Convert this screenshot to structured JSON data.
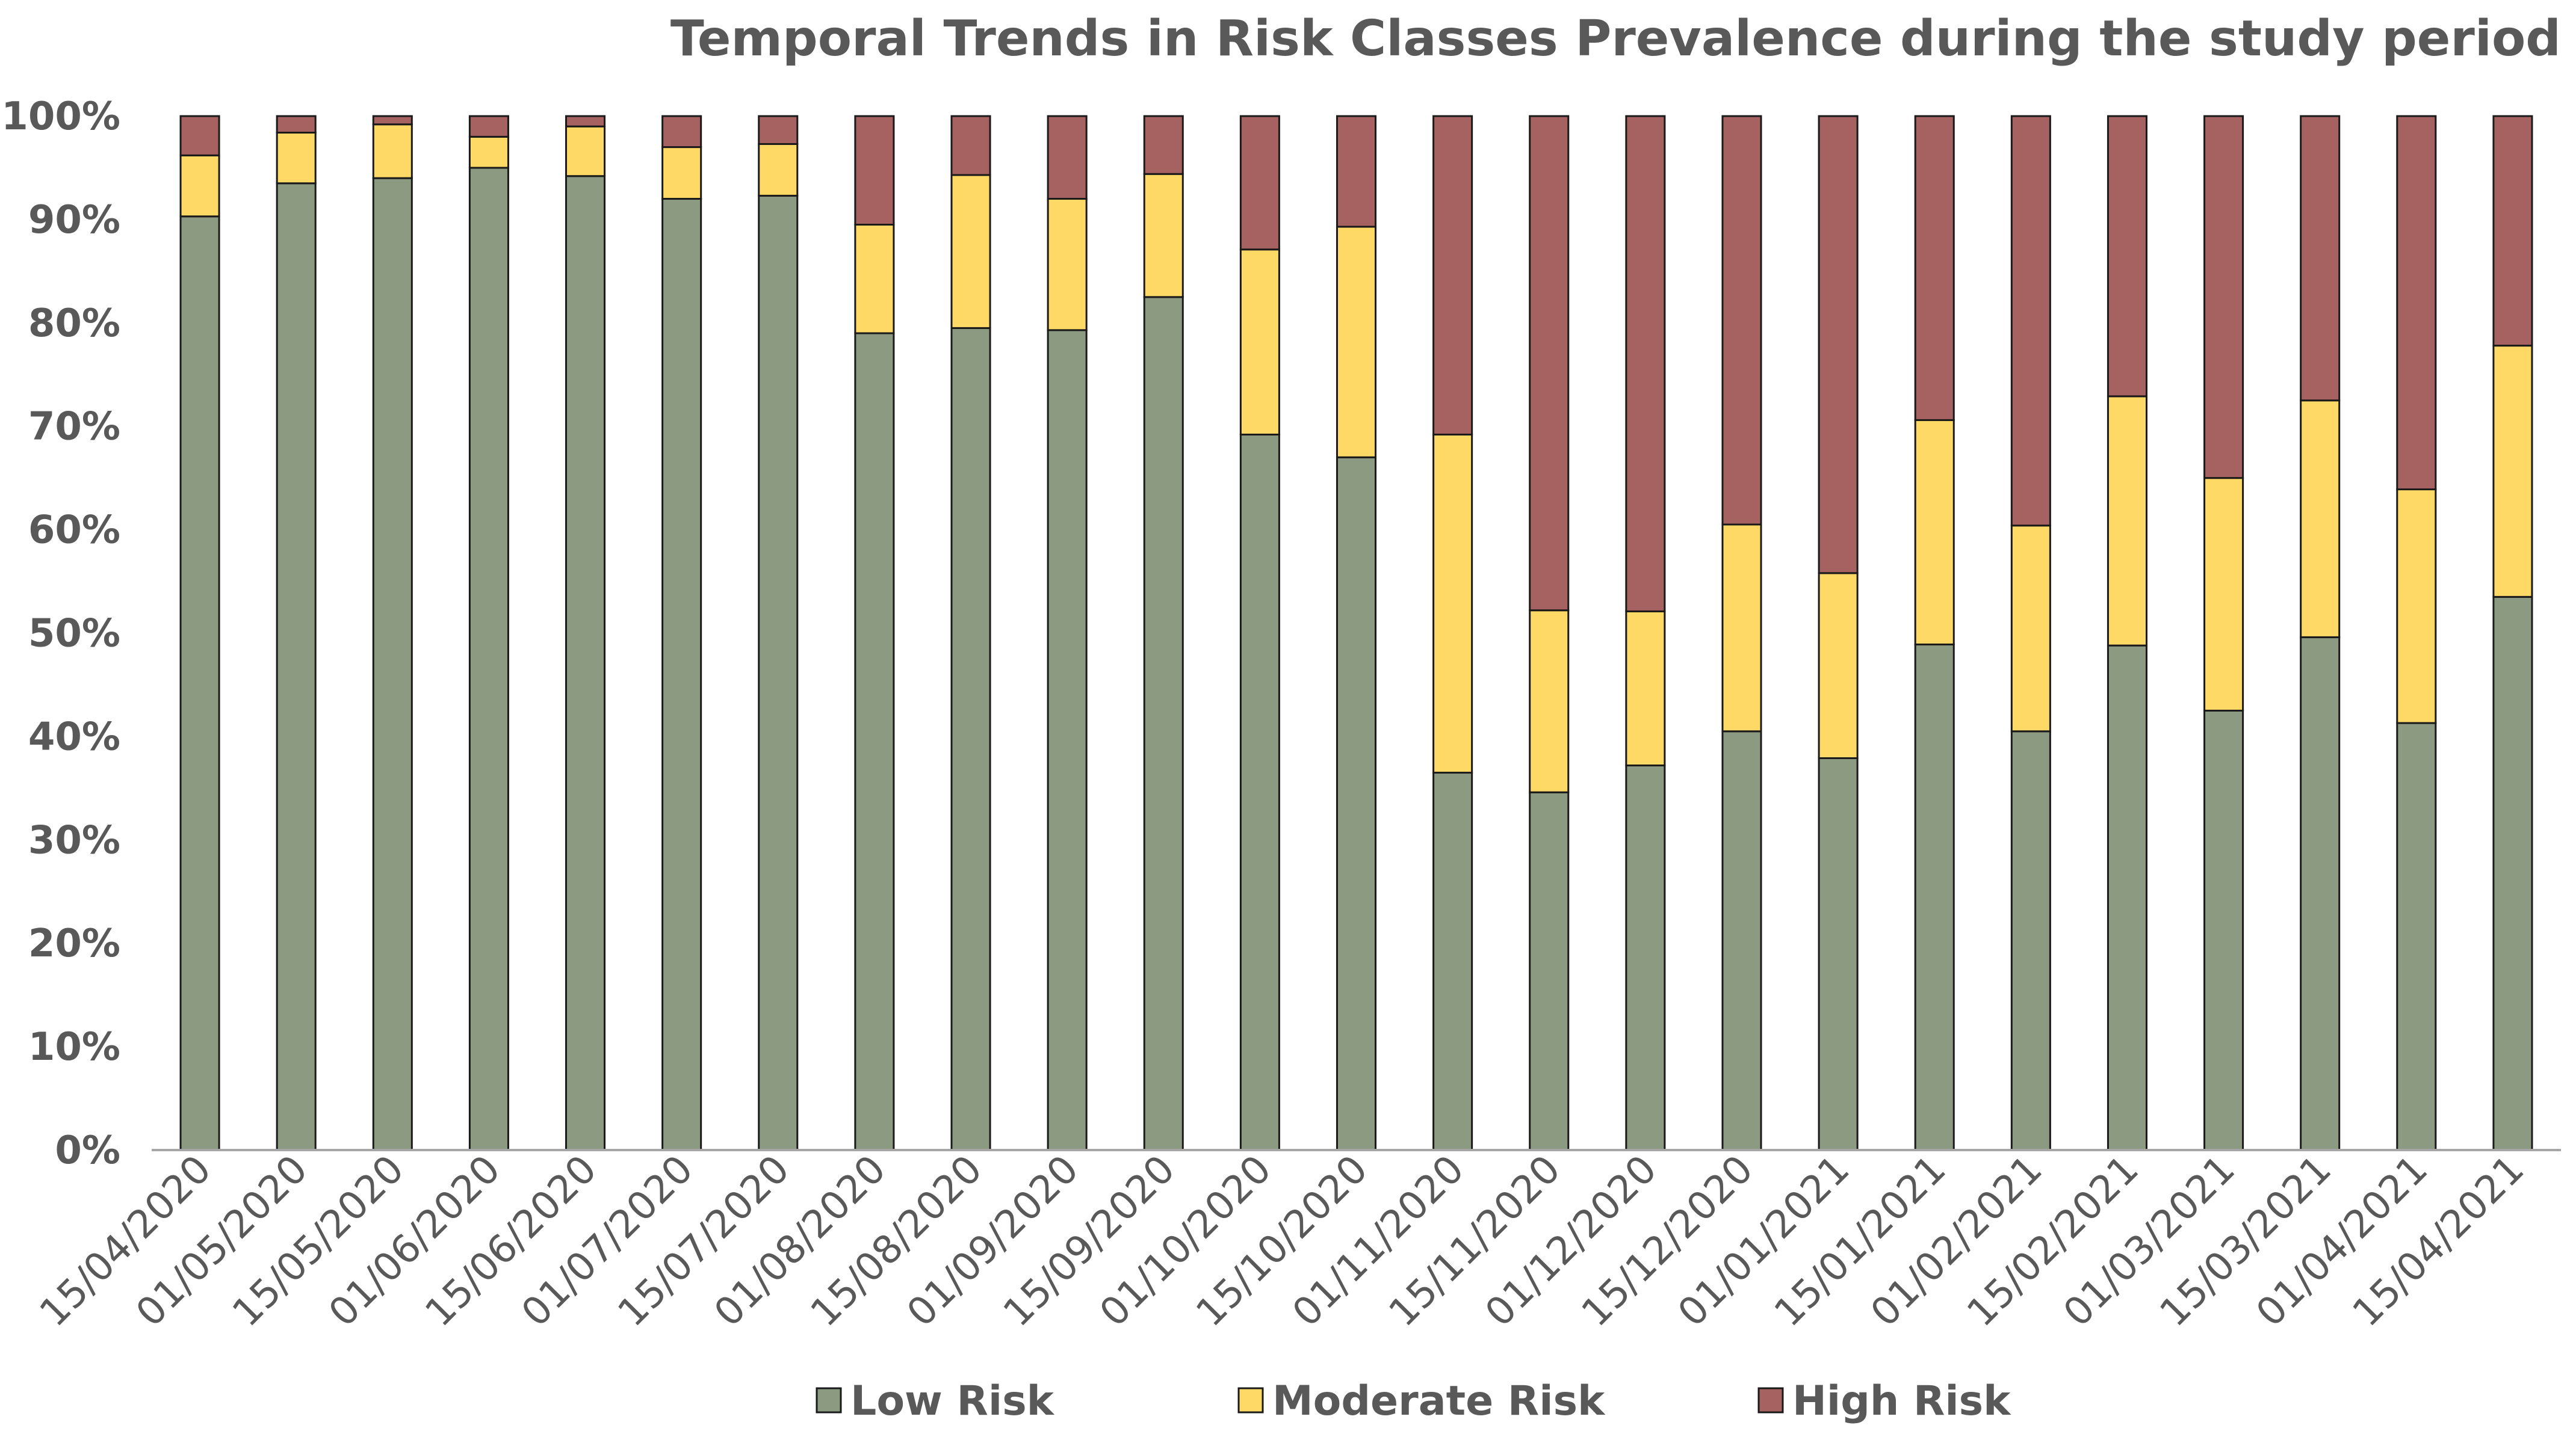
{
  "chart_data": {
    "type": "bar",
    "stacked": true,
    "percent": true,
    "title": "Temporal Trends in Risk Classes Prevalence during the study period",
    "xlabel": "",
    "ylabel": "",
    "ylim": [
      0,
      100
    ],
    "yticks": [
      "0%",
      "10%",
      "20%",
      "30%",
      "40%",
      "50%",
      "60%",
      "70%",
      "80%",
      "90%",
      "100%"
    ],
    "categories": [
      "15/04/2020",
      "01/05/2020",
      "15/05/2020",
      "01/06/2020",
      "15/06/2020",
      "01/07/2020",
      "15/07/2020",
      "01/08/2020",
      "15/08/2020",
      "01/09/2020",
      "15/09/2020",
      "01/10/2020",
      "15/10/2020",
      "01/11/2020",
      "15/11/2020",
      "01/12/2020",
      "15/12/2020",
      "01/01/2021",
      "15/01/2021",
      "01/02/2021",
      "15/02/2021",
      "01/03/2021",
      "15/03/2021",
      "01/04/2021",
      "15/04/2021"
    ],
    "series": [
      {
        "name": "Low Risk",
        "color": "#8c9a82",
        "values": [
          90.3,
          93.5,
          94.0,
          95.0,
          94.2,
          92.0,
          92.3,
          79.0,
          79.5,
          79.3,
          82.5,
          69.2,
          67.0,
          36.5,
          34.6,
          37.2,
          40.5,
          37.9,
          48.9,
          40.5,
          48.8,
          42.5,
          49.6,
          41.3,
          53.5
        ]
      },
      {
        "name": "Moderate Risk",
        "color": "#ffd966",
        "values": [
          5.9,
          4.9,
          5.2,
          3.0,
          4.8,
          5.0,
          5.0,
          10.5,
          14.8,
          12.7,
          11.9,
          17.9,
          22.3,
          32.7,
          17.6,
          14.9,
          20.0,
          17.9,
          21.7,
          19.9,
          24.1,
          22.5,
          22.9,
          22.6,
          24.3
        ]
      },
      {
        "name": "High Risk",
        "color": "#a66161",
        "values": [
          3.8,
          1.6,
          0.8,
          2.0,
          1.0,
          3.0,
          2.7,
          10.5,
          5.7,
          8.0,
          5.6,
          12.9,
          10.7,
          30.8,
          47.8,
          47.9,
          39.5,
          44.2,
          29.4,
          39.6,
          27.1,
          35.0,
          27.5,
          36.1,
          22.2
        ]
      }
    ],
    "legend_position": "bottom",
    "axis_color": "#a6a6a6",
    "bar_outline_color": "#1a1a1a",
    "text_color": "#595959"
  }
}
